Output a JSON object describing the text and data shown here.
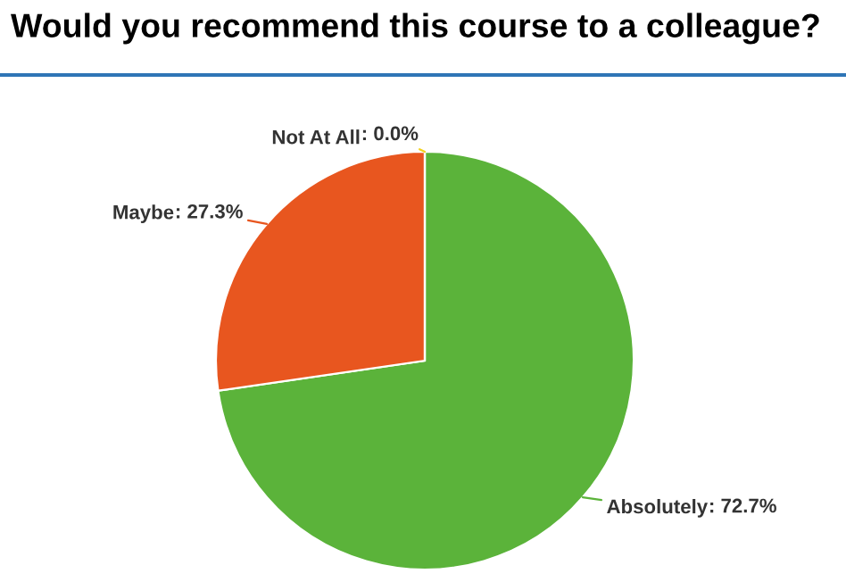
{
  "chart_data": {
    "type": "pie",
    "title": "Would you recommend this course to a colleague?",
    "categories": [
      "Absolutely",
      "Maybe",
      "Not At All"
    ],
    "values": [
      72.7,
      27.3,
      0.0
    ],
    "colors": [
      "#5bb33a",
      "#e8561f",
      "#f2d21b"
    ],
    "value_labels": [
      ": 72.7%",
      ": 27.3%",
      ": 0.0%"
    ]
  }
}
